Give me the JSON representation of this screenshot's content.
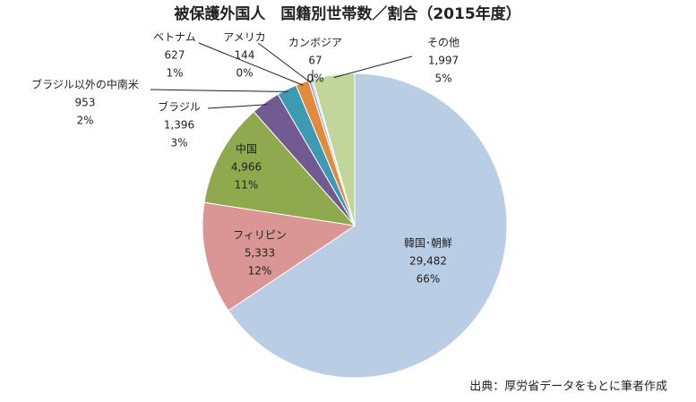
{
  "chart_data": {
    "type": "pie",
    "title": "被保護外国人　国籍別世帯数／割合（2015年度）",
    "categories": [
      "韓国･朝鮮",
      "フィリピン",
      "中国",
      "ブラジル",
      "ブラジル以外の中南米",
      "ベトナム",
      "アメリカ",
      "カンボジア",
      "その他"
    ],
    "values": [
      29482,
      5333,
      4966,
      1396,
      953,
      627,
      144,
      67,
      1997
    ],
    "value_labels": [
      "29,482",
      "5,333",
      "4,966",
      "1,396",
      "953",
      "627",
      "144",
      "67",
      "1,997"
    ],
    "share_labels": [
      "66%",
      "12%",
      "11%",
      "3%",
      "2%",
      "1%",
      "0%",
      "0%",
      "5%"
    ],
    "colors": [
      "#b9cde5",
      "#d99694",
      "#8fa94f",
      "#705a91",
      "#3c9bb2",
      "#e3893c",
      "#9fb5da",
      "#d6a09e",
      "#c2d59b"
    ],
    "source": "出典：厚労省データをもとに筆者作成"
  }
}
